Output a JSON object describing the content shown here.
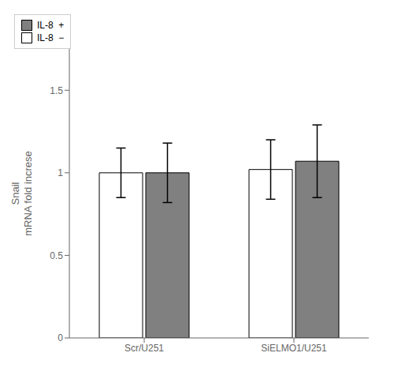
{
  "chart_data": {
    "type": "bar",
    "categories": [
      "Scr/U251",
      "SiELMO1/U251"
    ],
    "series": [
      {
        "name": "IL-8  −",
        "color": "#ffffff",
        "values": [
          1.0,
          1.02
        ],
        "errors": [
          0.15,
          0.18
        ]
      },
      {
        "name": "IL-8  +",
        "color": "#808080",
        "values": [
          1.0,
          1.07
        ],
        "errors": [
          0.18,
          0.22
        ]
      }
    ],
    "y_label": "Snail\nmRNA fold increse",
    "ylim": [
      0,
      1.75
    ],
    "yticks": [
      0,
      0.5,
      1,
      1.5
    ],
    "legend": "upper right",
    "grid": false
  }
}
